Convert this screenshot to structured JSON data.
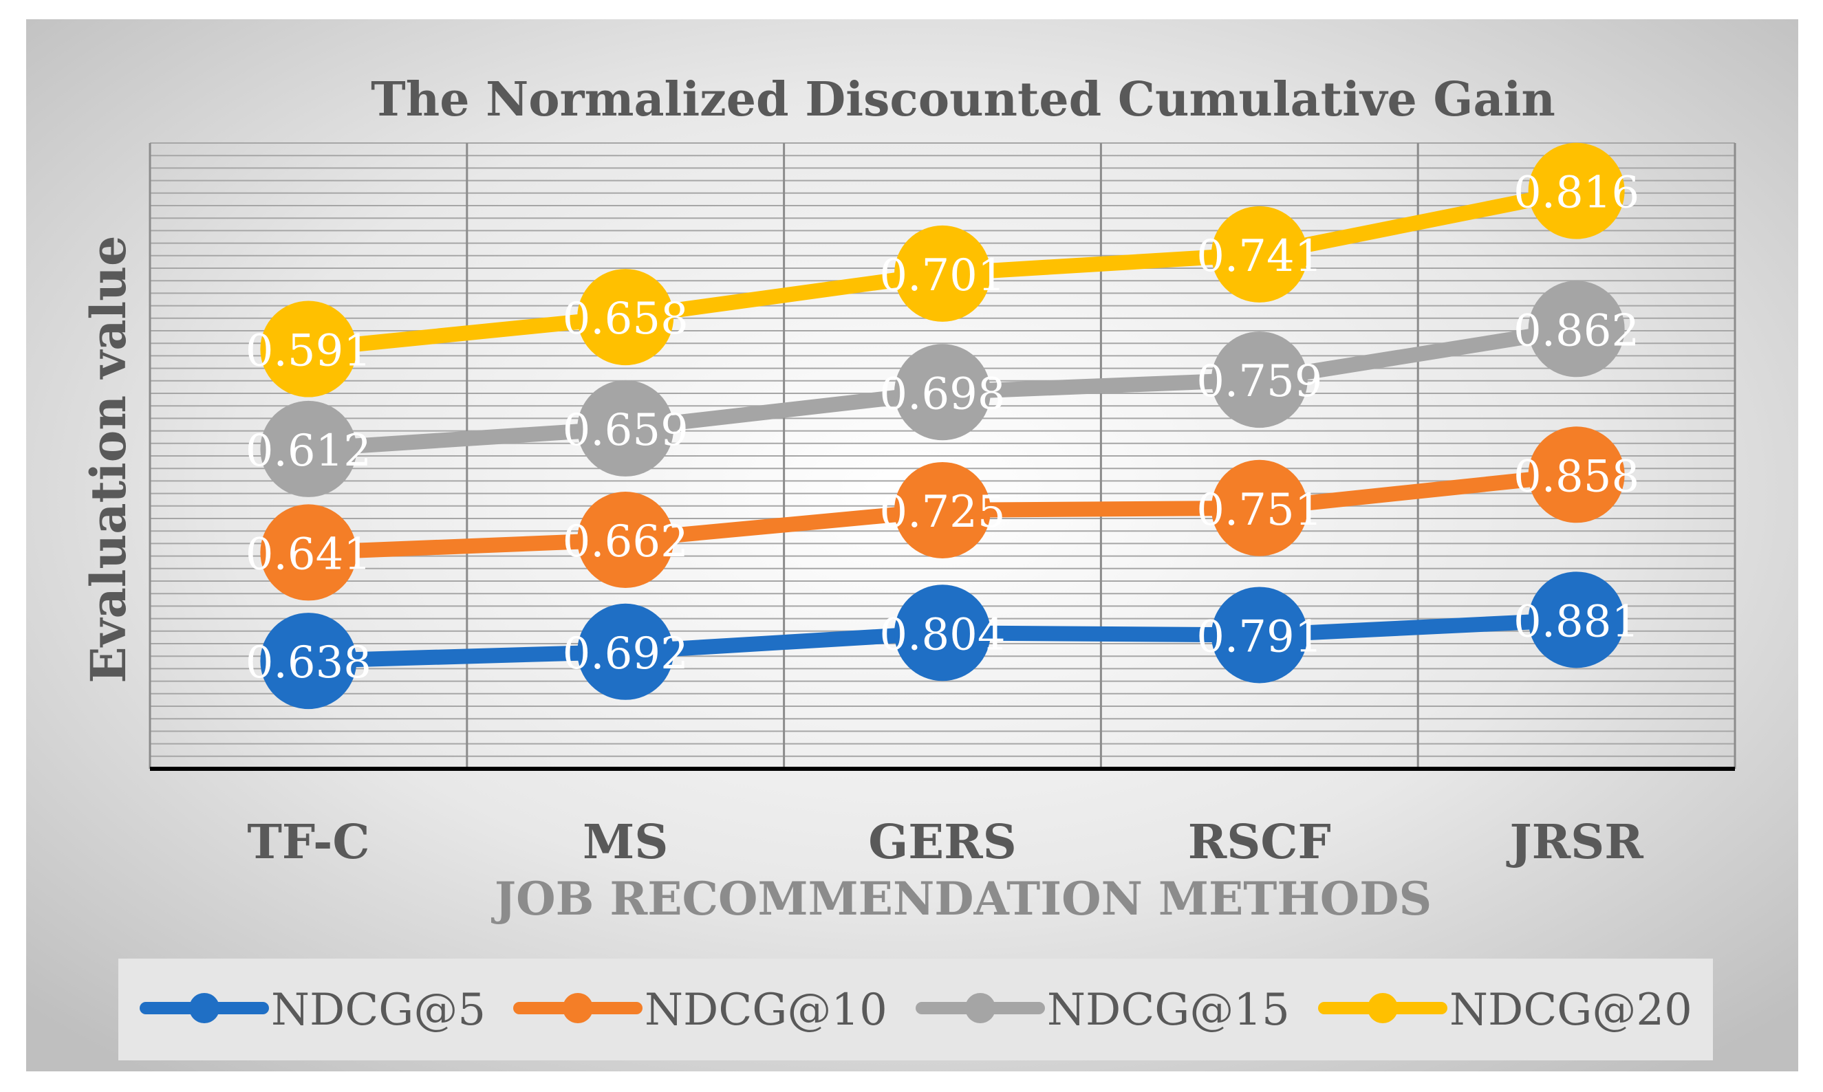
{
  "chart_data": {
    "type": "line",
    "title": "The Normalized Discounted Cumulative Gain",
    "xlabel": "JOB RECOMMENDATION METHODS",
    "ylabel": "Evaluation value",
    "categories": [
      "TF-C",
      "MS",
      "GERS",
      "RSCF",
      "JRSR"
    ],
    "series": [
      {
        "name": "NDCG@5",
        "color": "#1f6fc5",
        "values": [
          0.638,
          0.692,
          0.804,
          0.791,
          0.881
        ],
        "labels": [
          "0.638",
          "0.692",
          "0.804",
          "0.791",
          "0.881"
        ]
      },
      {
        "name": "NDCG@10",
        "color": "#f47e27",
        "values": [
          0.641,
          0.662,
          0.725,
          0.751,
          0.858
        ],
        "labels": [
          "0.641",
          "0.662",
          "0.725",
          "0.751",
          "0.858"
        ]
      },
      {
        "name": "NDCG@15",
        "color": "#a5a5a5",
        "values": [
          0.612,
          0.659,
          0.698,
          0.759,
          0.862
        ],
        "labels": [
          "0.612",
          "0.659",
          "0.698",
          "0.759",
          "0.862"
        ]
      },
      {
        "name": "NDCG@20",
        "color": "#ffc000",
        "values": [
          0.591,
          0.658,
          0.701,
          0.741,
          0.816
        ],
        "labels": [
          "0.591",
          "0.658",
          "0.701",
          "0.741",
          "0.816"
        ]
      }
    ],
    "legend_position": "bottom",
    "grid": true
  }
}
